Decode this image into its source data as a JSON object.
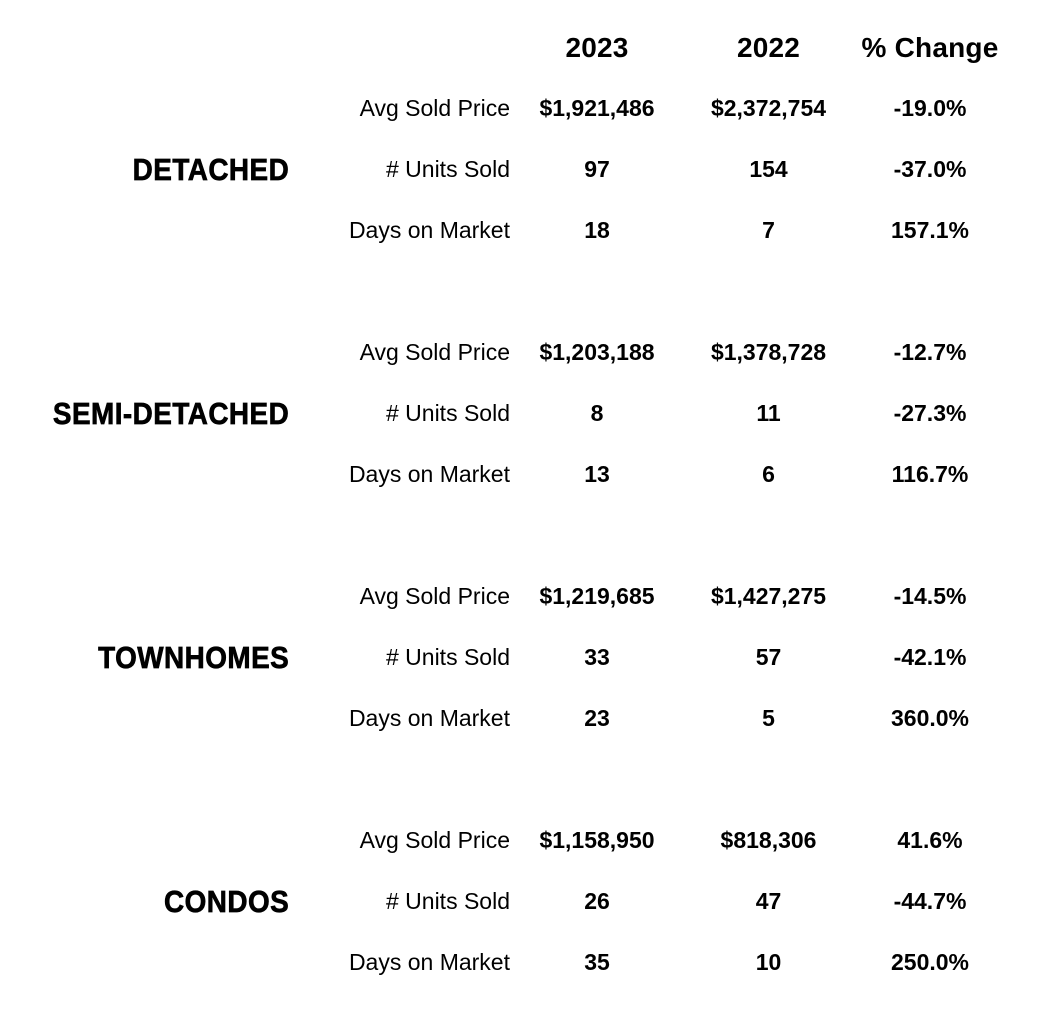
{
  "chart_data": {
    "type": "table",
    "columns": [
      "2023",
      "2022",
      "% Change"
    ],
    "metrics": [
      "Avg Sold Price",
      "# Units Sold",
      "Days on Market"
    ],
    "groups": [
      {
        "label": "DETACHED",
        "rows": [
          [
            "$1,921,486",
            "$2,372,754",
            "-19.0%"
          ],
          [
            "97",
            "154",
            "-37.0%"
          ],
          [
            "18",
            "7",
            "157.1%"
          ]
        ]
      },
      {
        "label": "SEMI-DETACHED",
        "rows": [
          [
            "$1,203,188",
            "$1,378,728",
            "-12.7%"
          ],
          [
            "8",
            "11",
            "-27.3%"
          ],
          [
            "13",
            "6",
            "116.7%"
          ]
        ]
      },
      {
        "label": "TOWNHOMES",
        "rows": [
          [
            "$1,219,685",
            "$1,427,275",
            "-14.5%"
          ],
          [
            "33",
            "57",
            "-42.1%"
          ],
          [
            "23",
            "5",
            "360.0%"
          ]
        ]
      },
      {
        "label": "CONDOS",
        "rows": [
          [
            "$1,158,950",
            "$818,306",
            "41.6%"
          ],
          [
            "26",
            "47",
            "-44.7%"
          ],
          [
            "35",
            "10",
            "250.0%"
          ]
        ]
      }
    ],
    "title": "",
    "text_color": "#000000",
    "background_color": "#ffffff"
  }
}
